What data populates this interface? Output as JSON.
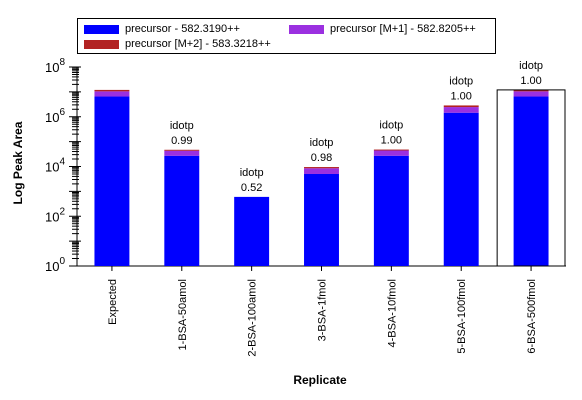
{
  "chart_data": {
    "type": "bar",
    "stacked": true,
    "log_scale": true,
    "xlabel": "Replicate",
    "ylabel": "Log Peak Area",
    "ylim": [
      1,
      100000000
    ],
    "y_tick_labels": [
      {
        "base": "10",
        "exp": "0"
      },
      {
        "base": "10",
        "exp": "2"
      },
      {
        "base": "10",
        "exp": "4"
      },
      {
        "base": "10",
        "exp": "6"
      },
      {
        "base": "10",
        "exp": "8"
      }
    ],
    "categories": [
      "Expected",
      "1-BSA-50amol",
      "2-BSA-100amol",
      "3-BSA-1fmol",
      "4-BSA-10fmol",
      "5-BSA-100fmol",
      "6-BSA-500fmol"
    ],
    "series": [
      {
        "name": "precursor - 582.3190++",
        "color": "#0000ff",
        "values": [
          6500000,
          27000,
          600,
          5000,
          27000,
          1450000,
          6500000
        ]
      },
      {
        "name": "precursor [M+1] - 582.8205++",
        "color": "#9b30e0",
        "values": [
          4000000,
          16000,
          0,
          3500,
          17000,
          1000000,
          4000000
        ]
      },
      {
        "name": "precursor [M+2] - 583.3218++",
        "color": "#b22222",
        "values": [
          1500000,
          4000,
          0,
          1000,
          4000,
          400000,
          1500000
        ]
      }
    ],
    "annotations": [
      {
        "category": "Expected",
        "label": "",
        "value": ""
      },
      {
        "category": "1-BSA-50amol",
        "label": "idotp",
        "value": "0.99"
      },
      {
        "category": "2-BSA-100amol",
        "label": "idotp",
        "value": "0.52"
      },
      {
        "category": "3-BSA-1fmol",
        "label": "idotp",
        "value": "0.98"
      },
      {
        "category": "4-BSA-10fmol",
        "label": "idotp",
        "value": "1.00"
      },
      {
        "category": "5-BSA-100fmol",
        "label": "idotp",
        "value": "1.00"
      },
      {
        "category": "6-BSA-500fmol",
        "label": "idotp",
        "value": "1.00"
      }
    ],
    "selected_category": "6-BSA-500fmol",
    "legend_position": "top"
  }
}
